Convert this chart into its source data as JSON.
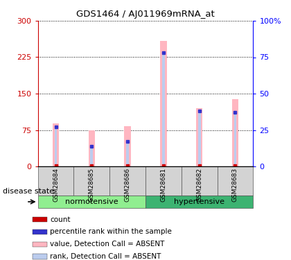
{
  "title": "GDS1464 / AJ011969mRNA_at",
  "samples": [
    "GSM28684",
    "GSM28685",
    "GSM28686",
    "GSM28681",
    "GSM28682",
    "GSM28683"
  ],
  "group_configs": [
    {
      "indices": [
        0,
        1,
        2
      ],
      "name": "normotensive",
      "color": "#90EE90"
    },
    {
      "indices": [
        3,
        4,
        5
      ],
      "name": "hypertensive",
      "color": "#3CB371"
    }
  ],
  "values": [
    88,
    75,
    83,
    258,
    120,
    138
  ],
  "ranks": [
    27,
    14,
    17,
    78,
    38,
    37
  ],
  "left_ylim": [
    0,
    300
  ],
  "right_ylim": [
    0,
    100
  ],
  "left_yticks": [
    0,
    75,
    150,
    225,
    300
  ],
  "right_yticks": [
    0,
    25,
    50,
    75,
    100
  ],
  "right_yticklabels": [
    "0",
    "25",
    "50",
    "75",
    "100%"
  ],
  "value_color_absent": "#FFB6C1",
  "rank_color_absent": "#BBCCEE",
  "count_color": "#CC0000",
  "rank_dot_color": "#3333CC",
  "pink_bar_width": 0.18,
  "blue_bar_width": 0.07,
  "disease_state_label": "disease state",
  "legend_items": [
    {
      "color": "#CC0000",
      "label": "count"
    },
    {
      "color": "#3333CC",
      "label": "percentile rank within the sample"
    },
    {
      "color": "#FFB6C1",
      "label": "value, Detection Call = ABSENT"
    },
    {
      "color": "#BBCCEE",
      "label": "rank, Detection Call = ABSENT"
    }
  ]
}
